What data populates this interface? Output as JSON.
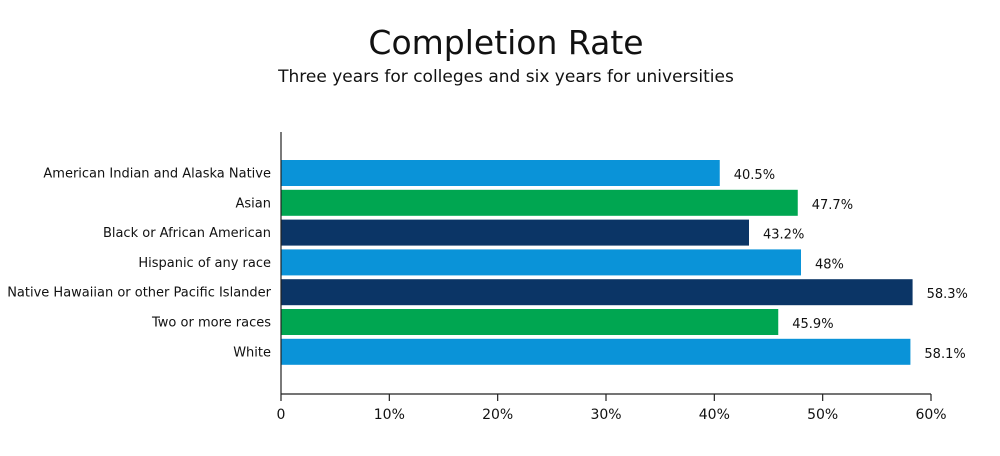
{
  "chart_data": {
    "type": "bar",
    "orientation": "horizontal",
    "title": "Completion Rate",
    "subtitle": "Three years for colleges and six years for universities",
    "categories": [
      "American Indian and Alaska Native",
      "Asian",
      "Black or African American",
      "Hispanic of any race",
      "Native Hawaiian or other Pacific Islander",
      "Two or more races",
      "White"
    ],
    "values": [
      40.5,
      47.7,
      43.2,
      48,
      58.3,
      45.9,
      58.1
    ],
    "value_labels": [
      "40.5%",
      "47.7%",
      "43.2%",
      "48%",
      "58.3%",
      "45.9%",
      "58.1%"
    ],
    "bar_colors": [
      "#0a93d8",
      "#00a651",
      "#0b3566",
      "#0a93d8",
      "#0b3566",
      "#00a651",
      "#0a93d8"
    ],
    "xlim": [
      0,
      60
    ],
    "xticks": [
      "0",
      "10%",
      "20%",
      "30%",
      "40%",
      "50%",
      "60%"
    ],
    "xlabel": "",
    "ylabel": "",
    "grid": false
  }
}
